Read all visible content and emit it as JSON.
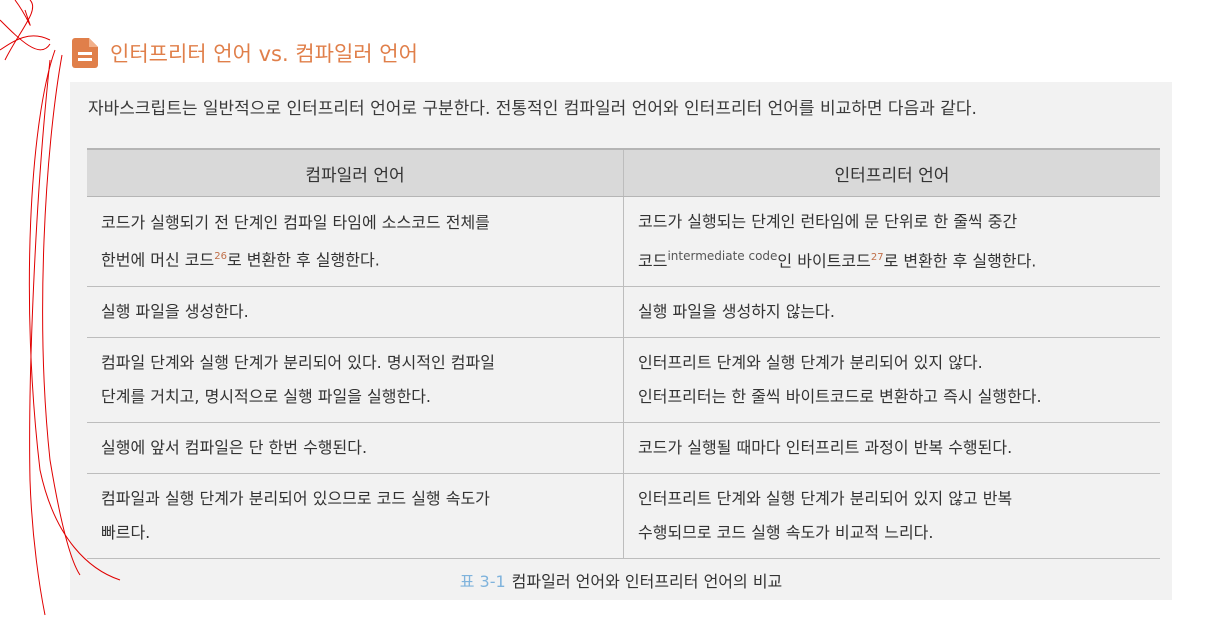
{
  "title": "인터프리터 언어 vs. 컴파일러 언어",
  "intro": "자바스크립트는 일반적으로 인터프리터 언어로 구분한다. 전통적인 컴파일러 언어와 인터프리터 언어를 비교하면 다음과 같다.",
  "table": {
    "headers": [
      "컴파일러 언어",
      "인터프리터 언어"
    ],
    "rows": [
      {
        "c1a": "코드가 실행되기 전 단계인 컴파일 타임에 소스코드 전체를",
        "c1b": "한번에 머신 코드",
        "c1sup": "26",
        "c1c": "로 변환한 후 실행한다.",
        "c2a": "코드가 실행되는 단계인 런타임에 문 단위로 한 줄씩 중간",
        "c2b": "코드",
        "c2en": "intermediate code",
        "c2c": "인 바이트코드",
        "c2sup": "27",
        "c2d": "로 변환한 후 실행한다."
      },
      {
        "c1": "실행 파일을 생성한다.",
        "c2": "실행 파일을 생성하지 않는다."
      },
      {
        "c1a": "컴파일 단계와 실행 단계가 분리되어 있다. 명시적인 컴파일",
        "c1b": "단계를 거치고, 명시적으로 실행 파일을 실행한다.",
        "c2a": "인터프리트 단계와 실행 단계가 분리되어 있지 않다.",
        "c2b": "인터프리터는 한 줄씩 바이트코드로 변환하고 즉시 실행한다."
      },
      {
        "c1": "실행에 앞서 컴파일은 단 한번 수행된다.",
        "c2": "코드가 실행될 때마다 인터프리트 과정이 반복 수행된다."
      },
      {
        "c1a": "컴파일과 실행 단계가 분리되어 있으므로 코드 실행 속도가",
        "c1b": "빠르다.",
        "c2a": "인터프리트 단계와 실행 단계가 분리되어 있지 않고 반복",
        "c2b": "수행되므로 코드 실행 속도가 비교적 느리다."
      }
    ]
  },
  "caption": {
    "number": "표 3-1",
    "text": "컴파일러 언어와 인터프리터 언어의 비교"
  },
  "colors": {
    "title": "#e07f4a",
    "caption_number": "#7fb3dc",
    "annotation": "#e00000"
  },
  "icons": {
    "title": "document-icon"
  }
}
